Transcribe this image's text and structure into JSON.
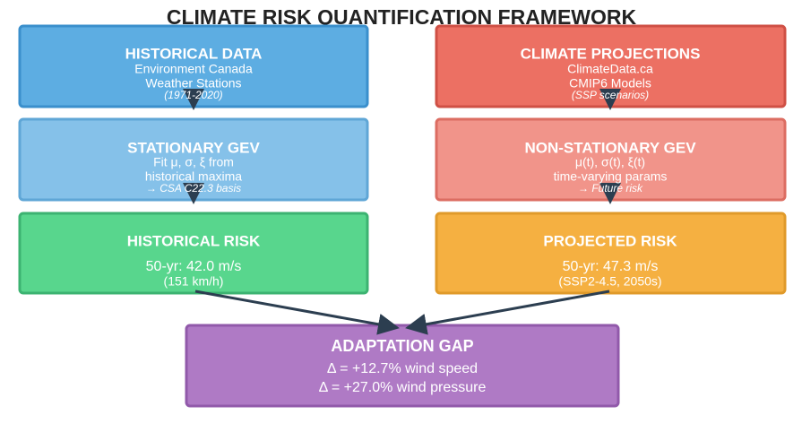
{
  "title": "CLIMATE RISK QUANTIFICATION FRAMEWORK",
  "nodes": [
    {
      "title": "HISTORICAL DATA",
      "lines": [
        "Environment Canada",
        "Weather Stations"
      ],
      "note": "(1971-2020)"
    },
    {
      "title": "CLIMATE PROJECTIONS",
      "lines": [
        "ClimateData.ca",
        "CMIP6 Models"
      ],
      "note": "(SSP scenarios)"
    },
    {
      "title": "STATIONARY GEV",
      "lines": [
        "Fit μ, σ, ξ from",
        "historical maxima"
      ],
      "note": "→ CSA C22.3 basis"
    },
    {
      "title": "NON-STATIONARY GEV",
      "lines": [
        "μ(t), σ(t), ξ(t)",
        "time-varying params"
      ],
      "note": "→ Future risk"
    },
    {
      "title": "HISTORICAL RISK",
      "lines": [
        "50-yr: 42.0 m/s",
        "(151 km/h)"
      ]
    },
    {
      "title": "PROJECTED RISK",
      "lines": [
        "50-yr: 47.3 m/s",
        "(SSP2-4.5, 2050s)"
      ]
    },
    {
      "title": "ADAPTATION GAP",
      "lines": [
        "Δ = +12.7% wind speed",
        "Δ = +27.0% wind pressure"
      ]
    }
  ]
}
